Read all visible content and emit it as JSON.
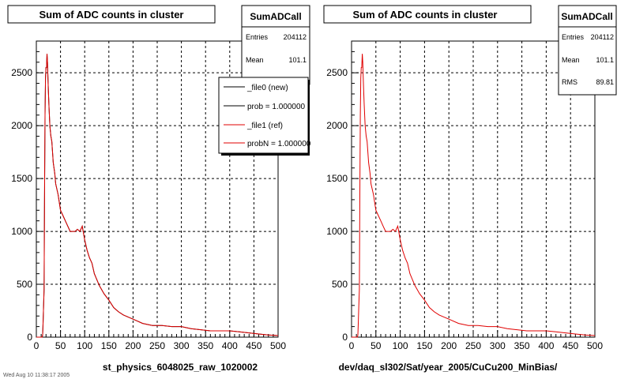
{
  "panels": [
    {
      "title": "Sum of ADC counts in cluster",
      "xlabel": "st_physics_6048025_raw_1020002",
      "stats": {
        "name": "SumADCall",
        "rows": [
          {
            "label": "Entries",
            "value": "204112"
          },
          {
            "label": "Mean",
            "value": "101.1"
          }
        ]
      },
      "legend": {
        "entries": [
          {
            "label": "_file0 (new)",
            "color": "#000000"
          },
          {
            "label": "prob = 1.000000",
            "color": "#000000"
          },
          {
            "label": "_file1 (ref)",
            "color": "#e00000"
          },
          {
            "label": "probN = 1.000000",
            "color": "#e00000"
          }
        ]
      }
    },
    {
      "title": "Sum of ADC counts in cluster",
      "xlabel": "dev/daq_sl302/Sat/year_2005/CuCu200_MinBias/",
      "stats": {
        "name": "SumADCall",
        "rows": [
          {
            "label": "Entries",
            "value": "204112"
          },
          {
            "label": "Mean",
            "value": "101.1"
          },
          {
            "label": "RMS",
            "value": "89.81"
          }
        ]
      }
    }
  ],
  "footer_text": "Wed Aug 10 11:38:17 2005",
  "chart_data": [
    {
      "type": "line",
      "title": "Sum of ADC counts in cluster",
      "xlabel": "st_physics_6048025_raw_1020002",
      "xlim": [
        0,
        500
      ],
      "ylim": [
        0,
        2800
      ],
      "grid": true,
      "xticks": [
        0,
        50,
        100,
        150,
        200,
        250,
        300,
        350,
        400,
        450,
        500
      ],
      "yticks": [
        0,
        500,
        1000,
        1500,
        2000,
        2500
      ],
      "series": [
        {
          "name": "_file0 (new)",
          "color": "#000000",
          "x": [
            0,
            12,
            13,
            14,
            15,
            16,
            17,
            18,
            19,
            20,
            21,
            22,
            23,
            24,
            25,
            26,
            28,
            30,
            32,
            35,
            38,
            40,
            45,
            50,
            55,
            60,
            65,
            70,
            75,
            80,
            85,
            90,
            95,
            100,
            105,
            110,
            115,
            120,
            130,
            140,
            150,
            160,
            170,
            180,
            190,
            200,
            220,
            240,
            260,
            280,
            300,
            320,
            340,
            360,
            380,
            400,
            420,
            440,
            460,
            480,
            500
          ],
          "y": [
            0,
            0,
            20,
            150,
            300,
            450,
            1350,
            2100,
            2450,
            2550,
            2550,
            2680,
            2600,
            2450,
            2320,
            2200,
            2000,
            1900,
            1850,
            1650,
            1550,
            1450,
            1350,
            1200,
            1150,
            1100,
            1050,
            1000,
            1000,
            1000,
            1020,
            1000,
            1050,
            920,
            820,
            750,
            700,
            600,
            490,
            410,
            350,
            280,
            240,
            210,
            190,
            170,
            130,
            110,
            110,
            100,
            100,
            80,
            70,
            60,
            60,
            60,
            50,
            40,
            30,
            20,
            15
          ]
        },
        {
          "name": "_file1 (ref)",
          "color": "#e00000",
          "x": [
            0,
            12,
            13,
            14,
            15,
            16,
            17,
            18,
            19,
            20,
            21,
            22,
            23,
            24,
            25,
            26,
            28,
            30,
            32,
            35,
            38,
            40,
            45,
            50,
            55,
            60,
            65,
            70,
            75,
            80,
            85,
            90,
            95,
            100,
            105,
            110,
            115,
            120,
            130,
            140,
            150,
            160,
            170,
            180,
            190,
            200,
            220,
            240,
            260,
            280,
            300,
            320,
            340,
            360,
            380,
            400,
            420,
            440,
            460,
            480,
            500
          ],
          "y": [
            0,
            0,
            20,
            150,
            300,
            450,
            1350,
            2100,
            2450,
            2550,
            2550,
            2680,
            2600,
            2450,
            2320,
            2200,
            2000,
            1900,
            1850,
            1650,
            1550,
            1450,
            1350,
            1200,
            1150,
            1100,
            1050,
            1000,
            1000,
            1000,
            1020,
            1000,
            1050,
            920,
            820,
            750,
            700,
            600,
            490,
            410,
            350,
            280,
            240,
            210,
            190,
            170,
            130,
            110,
            110,
            100,
            100,
            80,
            70,
            60,
            60,
            60,
            50,
            40,
            30,
            20,
            15
          ]
        }
      ]
    },
    {
      "type": "line",
      "title": "Sum of ADC counts in cluster",
      "xlabel": "dev/daq_sl302/Sat/year_2005/CuCu200_MinBias/",
      "xlim": [
        0,
        500
      ],
      "ylim": [
        0,
        2800
      ],
      "grid": true,
      "xticks": [
        0,
        50,
        100,
        150,
        200,
        250,
        300,
        350,
        400,
        450,
        500
      ],
      "yticks": [
        0,
        500,
        1000,
        1500,
        2000,
        2500
      ],
      "series": [
        {
          "color": "#e00000",
          "x": [
            0,
            12,
            13,
            14,
            15,
            16,
            17,
            18,
            19,
            20,
            21,
            22,
            23,
            24,
            25,
            26,
            28,
            30,
            32,
            35,
            38,
            40,
            45,
            50,
            55,
            60,
            65,
            70,
            75,
            80,
            85,
            90,
            95,
            100,
            105,
            110,
            115,
            120,
            130,
            140,
            150,
            160,
            170,
            180,
            190,
            200,
            220,
            240,
            260,
            280,
            300,
            320,
            340,
            360,
            380,
            400,
            420,
            440,
            460,
            480,
            500
          ],
          "y": [
            0,
            0,
            20,
            150,
            300,
            450,
            1350,
            2100,
            2450,
            2550,
            2550,
            2680,
            2600,
            2450,
            2320,
            2200,
            2000,
            1900,
            1850,
            1650,
            1550,
            1450,
            1350,
            1200,
            1150,
            1100,
            1050,
            1000,
            1000,
            1000,
            1020,
            1000,
            1050,
            920,
            820,
            750,
            700,
            600,
            490,
            410,
            350,
            280,
            240,
            210,
            190,
            170,
            130,
            110,
            110,
            100,
            100,
            80,
            70,
            60,
            60,
            60,
            50,
            40,
            30,
            20,
            15
          ]
        }
      ]
    }
  ]
}
